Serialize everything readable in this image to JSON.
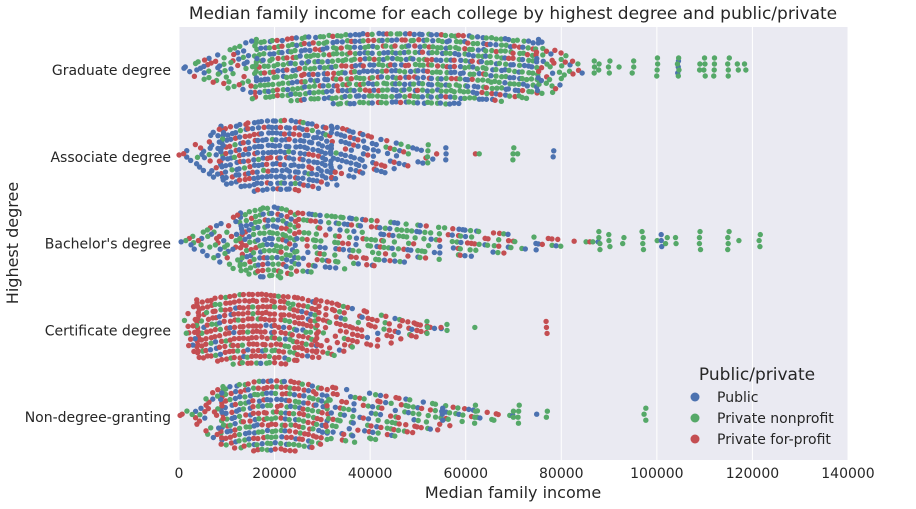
{
  "chart_data": {
    "type": "swarm",
    "title": "Median family income for each college by highest degree and public/private",
    "xlabel": "Median family income",
    "ylabel": "Highest degree",
    "xlim": [
      0,
      140000
    ],
    "x_ticks": [
      "0",
      "20000",
      "40000",
      "60000",
      "80000",
      "100000",
      "120000",
      "140000"
    ],
    "x_tick_values": [
      0,
      20000,
      40000,
      60000,
      80000,
      100000,
      120000,
      140000
    ],
    "categories": [
      "Graduate degree",
      "Associate degree",
      "Bachelor's degree",
      "Certificate degree",
      "Non-degree-granting"
    ],
    "grid": true,
    "legend_position": "lower-right",
    "legend_title": "Public/private",
    "series": [
      {
        "name": "Public",
        "color": "#4c72b0"
      },
      {
        "name": "Private nonprofit",
        "color": "#55a868"
      },
      {
        "name": "Private for-profit",
        "color": "#c44e52"
      }
    ],
    "distribution": [
      {
        "category": "Graduate degree",
        "range": [
          0,
          119000
        ],
        "dense_range": [
          16000,
          75000
        ],
        "mix": [
          0.33,
          0.5,
          0.17
        ],
        "outliers": [
          [
            87000,
            1
          ],
          [
            88000,
            1
          ],
          [
            90000,
            1
          ],
          [
            92000,
            1
          ],
          [
            95000,
            1
          ],
          [
            100000,
            1
          ],
          [
            104500,
            0
          ],
          [
            104500,
            1
          ],
          [
            109000,
            1
          ],
          [
            110000,
            1
          ],
          [
            112000,
            1
          ],
          [
            115000,
            1
          ],
          [
            117000,
            1
          ],
          [
            118500,
            1
          ]
        ]
      },
      {
        "category": "Associate degree",
        "range": [
          0,
          78000
        ],
        "dense_range": [
          9000,
          32000
        ],
        "mix": [
          0.7,
          0.1,
          0.2
        ],
        "outliers": [
          [
            48000,
            1
          ],
          [
            52000,
            1
          ],
          [
            56000,
            0
          ],
          [
            62000,
            2
          ],
          [
            63000,
            1
          ],
          [
            70000,
            1
          ],
          [
            71000,
            1
          ],
          [
            78500,
            0
          ]
        ]
      },
      {
        "category": "Bachelor's degree",
        "range": [
          0,
          122000
        ],
        "dense_range": [
          13000,
          25000
        ],
        "mix": [
          0.3,
          0.45,
          0.25
        ],
        "outliers": [
          [
            88000,
            1
          ],
          [
            90000,
            1
          ],
          [
            93000,
            1
          ],
          [
            97000,
            1
          ],
          [
            100000,
            1
          ],
          [
            101000,
            0
          ],
          [
            102000,
            1
          ],
          [
            104000,
            1
          ],
          [
            109000,
            1
          ],
          [
            115000,
            1
          ],
          [
            117000,
            1
          ],
          [
            121500,
            1
          ]
        ]
      },
      {
        "category": "Certificate degree",
        "range": [
          0,
          77000
        ],
        "dense_range": [
          4000,
          29000
        ],
        "mix": [
          0.1,
          0.15,
          0.75
        ],
        "outliers": [
          [
            50000,
            2
          ],
          [
            52000,
            1
          ],
          [
            55000,
            2
          ],
          [
            56000,
            1
          ],
          [
            62000,
            1
          ],
          [
            77000,
            2
          ]
        ]
      },
      {
        "category": "Non-degree-granting",
        "range": [
          0,
          98000
        ],
        "dense_range": [
          9000,
          31000
        ],
        "mix": [
          0.3,
          0.35,
          0.35
        ],
        "outliers": [
          [
            55000,
            0
          ],
          [
            62000,
            1
          ],
          [
            70000,
            1
          ],
          [
            71000,
            1
          ],
          [
            75000,
            0
          ],
          [
            77000,
            1
          ],
          [
            97500,
            1
          ]
        ]
      }
    ]
  }
}
